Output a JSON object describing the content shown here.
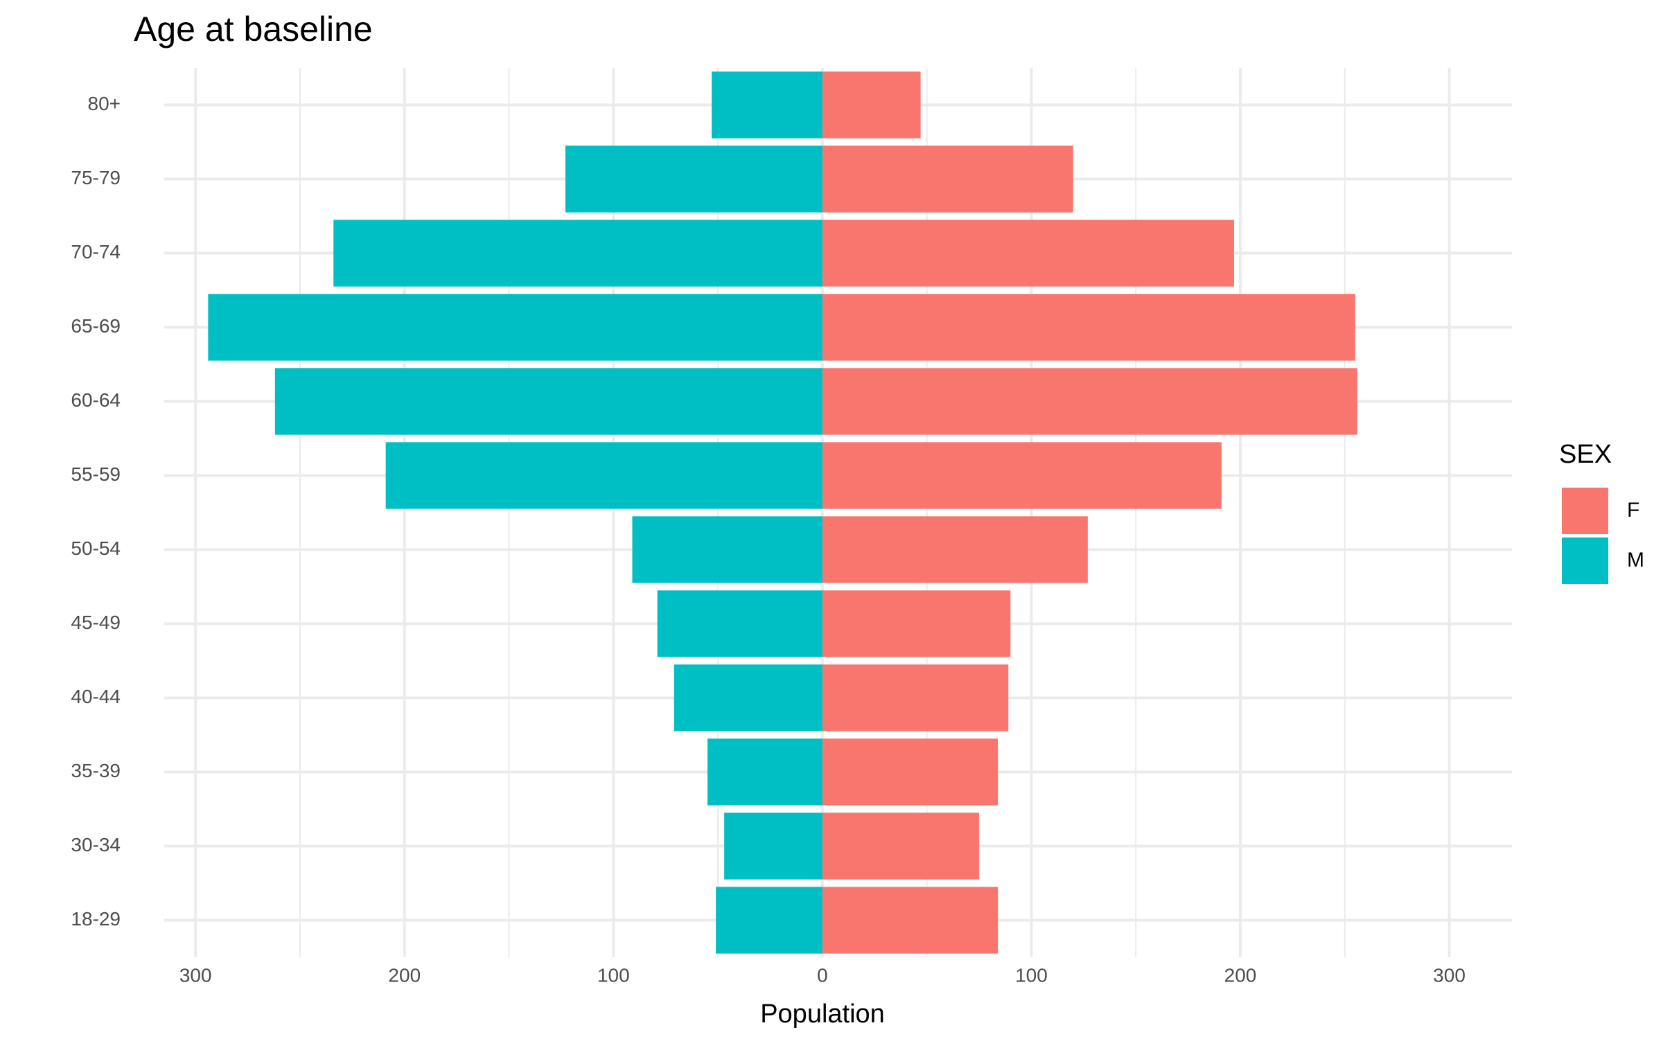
{
  "chart_data": {
    "type": "pyramid",
    "title": "Age at baseline",
    "x_label": "Population",
    "legend_title": "SEX",
    "categories": [
      "18-29",
      "30-34",
      "35-39",
      "40-44",
      "45-49",
      "50-54",
      "55-59",
      "60-64",
      "65-69",
      "70-74",
      "75-79",
      "80+"
    ],
    "series": [
      {
        "name": "F",
        "color": "#f8766d",
        "values": [
          84,
          75,
          84,
          89,
          90,
          127,
          191,
          256,
          255,
          197,
          120,
          47
        ]
      },
      {
        "name": "M",
        "color": "#00bfc4",
        "values": [
          -51,
          -47,
          -55,
          -71,
          -79,
          -91,
          -209,
          -262,
          -294,
          -234,
          -123,
          -53
        ]
      }
    ],
    "xlim": [
      -315,
      330
    ],
    "xticks": [
      {
        "value": -300,
        "label": "300"
      },
      {
        "value": -200,
        "label": "200"
      },
      {
        "value": -100,
        "label": "100"
      },
      0,
      100,
      200,
      300
    ],
    "x_minor_ticks": [
      -250,
      -150,
      -50,
      50,
      150,
      250
    ],
    "grid": true,
    "legend_position": "right"
  }
}
